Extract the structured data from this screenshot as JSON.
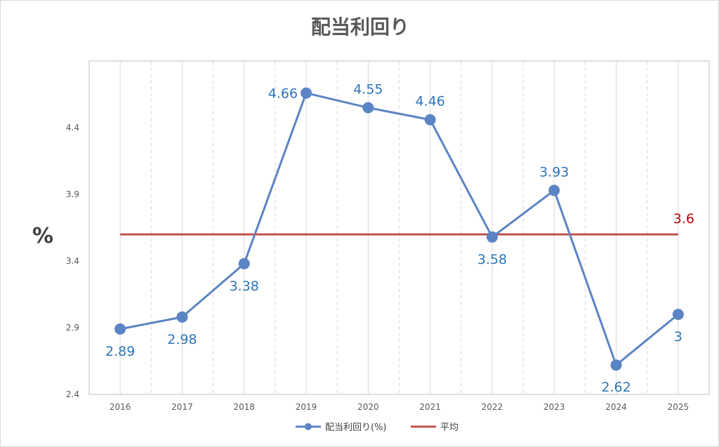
{
  "chart_data": {
    "type": "line",
    "title": "配当利回り",
    "ylabel": "%",
    "xlabel": "",
    "ylim": [
      2.4,
      4.9
    ],
    "yticks": [
      "2.4",
      "2.9",
      "3.4",
      "3.9",
      "4.4"
    ],
    "categories": [
      "2016",
      "2017",
      "2018",
      "2019",
      "2020",
      "2021",
      "2022",
      "2023",
      "2024",
      "2025"
    ],
    "series": [
      {
        "name": "配当利回り(%)",
        "color": "#5b84c4",
        "values": [
          2.89,
          2.98,
          3.38,
          4.66,
          4.55,
          4.46,
          3.58,
          3.93,
          2.62,
          3
        ],
        "labels": [
          "2.89",
          "2.98",
          "3.38",
          "4.66",
          "4.55",
          "4.46",
          "3.58",
          "3.93",
          "2.62",
          "3"
        ],
        "label_positions": [
          "below",
          "below",
          "below",
          "left",
          "above",
          "above",
          "below",
          "above",
          "below",
          "below"
        ]
      },
      {
        "name": "平均",
        "color": "#c0504d",
        "value": 3.6,
        "label": "3.6"
      }
    ],
    "grid": {
      "vertical": true,
      "horizontal": false
    },
    "legend_placement": "bottom"
  }
}
